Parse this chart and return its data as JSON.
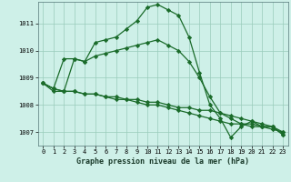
{
  "title": "Graphe pression niveau de la mer (hPa)",
  "background_color": "#cef0e8",
  "grid_color": "#99ccbb",
  "line_color": "#1a6b2a",
  "marker": "D",
  "markersize": 2.2,
  "linewidth": 0.9,
  "xlim": [
    -0.5,
    23.5
  ],
  "ylim": [
    1006.5,
    1011.8
  ],
  "xticks": [
    0,
    1,
    2,
    3,
    4,
    5,
    6,
    7,
    8,
    9,
    10,
    11,
    12,
    13,
    14,
    15,
    16,
    17,
    18,
    19,
    20,
    21,
    22,
    23
  ],
  "yticks": [
    1007,
    1008,
    1009,
    1010,
    1011
  ],
  "series": [
    [
      1008.8,
      1008.6,
      1009.7,
      1009.7,
      1009.6,
      1010.3,
      1010.4,
      1010.5,
      1010.8,
      1011.1,
      1011.6,
      1011.7,
      1011.5,
      1011.3,
      1010.5,
      1009.2,
      1008.0,
      1007.5,
      1006.8,
      1007.2,
      1007.4,
      1007.2,
      1007.2,
      1006.9
    ],
    [
      1008.8,
      1008.6,
      1008.5,
      1009.7,
      1009.6,
      1009.8,
      1009.9,
      1010.0,
      1010.1,
      1010.2,
      1010.3,
      1010.4,
      1010.2,
      1010.0,
      1009.6,
      1009.0,
      1008.3,
      1007.7,
      1007.5,
      1007.3,
      1007.3,
      1007.2,
      1007.2,
      1006.9
    ],
    [
      1008.8,
      1008.6,
      1008.5,
      1008.5,
      1008.4,
      1008.4,
      1008.3,
      1008.3,
      1008.2,
      1008.2,
      1008.1,
      1008.1,
      1008.0,
      1007.9,
      1007.9,
      1007.8,
      1007.8,
      1007.7,
      1007.6,
      1007.5,
      1007.4,
      1007.3,
      1007.2,
      1007.0
    ],
    [
      1008.8,
      1008.5,
      1008.5,
      1008.5,
      1008.4,
      1008.4,
      1008.3,
      1008.2,
      1008.2,
      1008.1,
      1008.0,
      1008.0,
      1007.9,
      1007.8,
      1007.7,
      1007.6,
      1007.5,
      1007.4,
      1007.3,
      1007.3,
      1007.2,
      1007.2,
      1007.1,
      1007.0
    ]
  ]
}
